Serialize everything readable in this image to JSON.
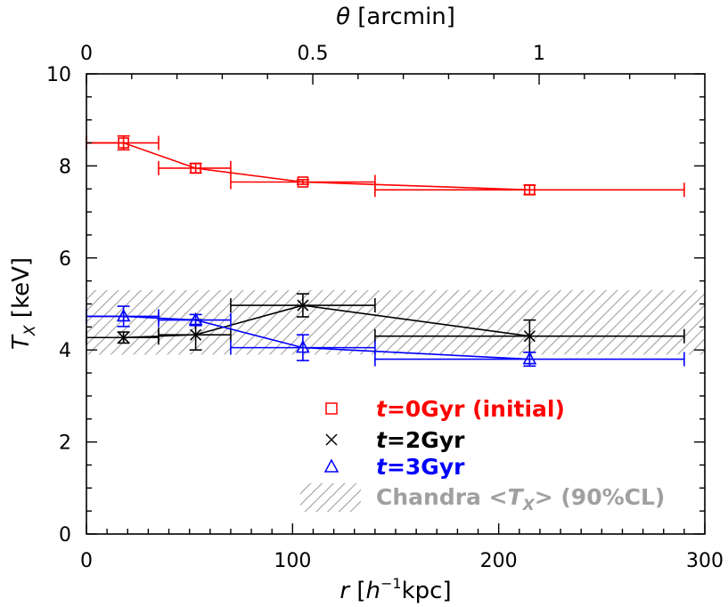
{
  "chart_data": {
    "type": "scatter",
    "xlabel": "r [h⁻¹kpc]",
    "ylabel": "T_X [keV]",
    "top_xlabel": "θ [arcmin]",
    "xlim": [
      0,
      300
    ],
    "ylim": [
      0,
      10
    ],
    "top_xlim": [
      0,
      1.366
    ],
    "x_ticks": [
      0,
      100,
      200,
      300
    ],
    "y_ticks": [
      0,
      2,
      4,
      6,
      8,
      10
    ],
    "top_ticks": [
      0,
      0.5,
      1
    ],
    "legend_position": "bottom-right",
    "grid": false,
    "band": {
      "label": "Chandra <T_X> (90%CL)",
      "y_low": 3.9,
      "y_high": 5.3,
      "color": "#a0a0a0"
    },
    "series": [
      {
        "name": "t=0Gyr (initial)",
        "color": "#ff0000",
        "marker": "square",
        "points": [
          {
            "x": 0,
            "y": 8.5,
            "xerr": [
              0,
              0
            ],
            "yerr": 0
          },
          {
            "x": 18,
            "y": 8.5,
            "xerr": [
              0,
              35
            ],
            "yerr": 0.15
          },
          {
            "x": 53,
            "y": 7.95,
            "xerr": [
              35,
              70
            ],
            "yerr": 0.1
          },
          {
            "x": 105,
            "y": 7.65,
            "xerr": [
              70,
              140
            ],
            "yerr": 0.05
          },
          {
            "x": 215,
            "y": 7.48,
            "xerr": [
              140,
              290
            ],
            "yerr": 0.1
          }
        ]
      },
      {
        "name": "t=2Gyr",
        "color": "#000000",
        "marker": "cross",
        "points": [
          {
            "x": 0,
            "y": 4.27,
            "xerr": [
              0,
              0
            ],
            "yerr": 0
          },
          {
            "x": 18,
            "y": 4.27,
            "xerr": [
              0,
              35
            ],
            "yerr": 0.12
          },
          {
            "x": 53,
            "y": 4.33,
            "xerr": [
              35,
              70
            ],
            "yerr": 0.33
          },
          {
            "x": 105,
            "y": 4.97,
            "xerr": [
              70,
              140
            ],
            "yerr": 0.25
          },
          {
            "x": 215,
            "y": 4.3,
            "xerr": [
              140,
              290
            ],
            "yerr": 0.35
          }
        ]
      },
      {
        "name": "t=3Gyr",
        "color": "#0000ff",
        "marker": "triangle",
        "points": [
          {
            "x": 0,
            "y": 4.73,
            "xerr": [
              0,
              0
            ],
            "yerr": 0
          },
          {
            "x": 18,
            "y": 4.73,
            "xerr": [
              0,
              35
            ],
            "yerr": 0.22
          },
          {
            "x": 53,
            "y": 4.65,
            "xerr": [
              35,
              70
            ],
            "yerr": 0.12
          },
          {
            "x": 105,
            "y": 4.05,
            "xerr": [
              70,
              140
            ],
            "yerr": 0.28
          },
          {
            "x": 215,
            "y": 3.8,
            "xerr": [
              140,
              290
            ],
            "yerr": 0.15
          }
        ]
      }
    ]
  },
  "labels": {
    "top_title_symbol": "θ",
    "top_title_unit": " [arcmin]",
    "x_title_symbol": "r",
    "x_title_unit_open": " [",
    "x_title_h": "h",
    "x_title_exp": "−1",
    "x_title_unit_close": "kpc]",
    "y_title_symbol": "T",
    "y_title_sub": "X",
    "y_title_unit": " [keV]",
    "legend_t": "t",
    "legend_0": "=0Gyr (initial)",
    "legend_2": "=2Gyr",
    "legend_3": "=3Gyr",
    "legend_band_a": "Chandra <",
    "legend_band_T": "T",
    "legend_band_sub": "X",
    "legend_band_b": "> (90%CL)"
  }
}
